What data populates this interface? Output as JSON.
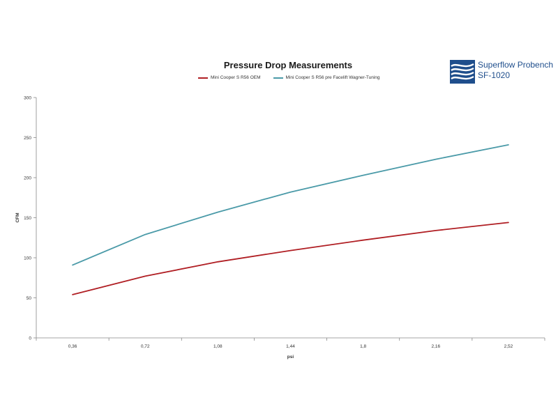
{
  "chart_data": {
    "type": "line",
    "title": "Pressure Drop Measurements",
    "xlabel": "psi",
    "ylabel": "CFM",
    "x": [
      "0,36",
      "0,72",
      "1,08",
      "1,44",
      "1,8",
      "2,16",
      "2,52"
    ],
    "ylim": [
      0,
      300
    ],
    "yticks": [
      0,
      50,
      100,
      150,
      200,
      250,
      300
    ],
    "grid": false,
    "legend": "top",
    "series": [
      {
        "name": "Mini Cooper S R56 OEM",
        "color": "#b01e23",
        "values": [
          54,
          77,
          95,
          109,
          122,
          134,
          144
        ]
      },
      {
        "name": "Mini Cooper S R56 pre Facelift Wagner-Tuning",
        "color": "#4a9aa8",
        "values": [
          91,
          129,
          157,
          182,
          203,
          223,
          241
        ]
      }
    ]
  },
  "logo": {
    "line1": "Superflow Probench",
    "line2": "SF-1020",
    "color": "#1f4e8c"
  }
}
